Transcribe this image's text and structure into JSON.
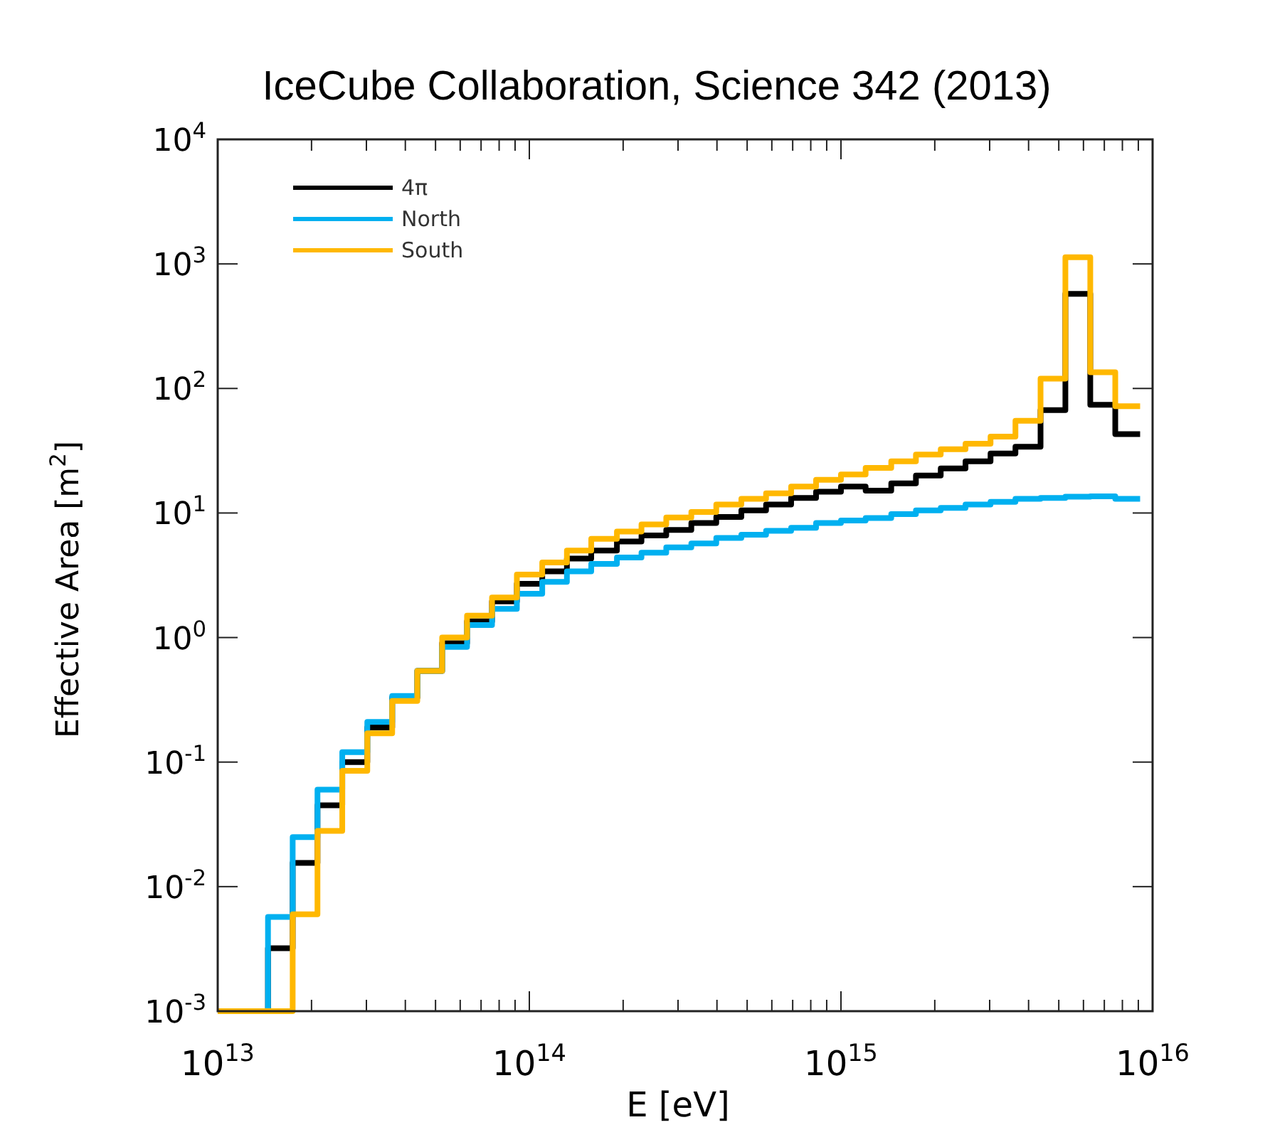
{
  "chart_data": {
    "type": "histogram",
    "title": "IceCube Collaboration, Science 342 (2013)",
    "xlabel": "E [eV]",
    "ylabel": "Effective Area [m$^{2}$]",
    "log": "xy",
    "legend": "top left",
    "grid": false,
    "xlim": [
      10000000000000.0,
      1e+16
    ],
    "ylim": [
      0.001,
      10000
    ],
    "xticks": [
      {
        "value": 10000000000000.0,
        "label": "10$^{13}$"
      },
      {
        "value": 20000000000000.0,
        "label": null
      },
      {
        "value": 30000000000000.0,
        "label": null
      },
      {
        "value": 40000000000000.0,
        "label": null
      },
      {
        "value": 50000000000000.0,
        "label": null
      },
      {
        "value": 60000000000000.0,
        "label": null
      },
      {
        "value": 70000000000000.0,
        "label": null
      },
      {
        "value": 80000000000000.0,
        "label": null
      },
      {
        "value": 90000000000000.0,
        "label": null
      },
      {
        "value": 100000000000000.0,
        "label": "10$^{14}$"
      },
      {
        "value": 200000000000000.0,
        "label": null
      },
      {
        "value": 300000000000000.0,
        "label": null
      },
      {
        "value": 400000000000000.0,
        "label": null
      },
      {
        "value": 500000000000000.0,
        "label": null
      },
      {
        "value": 600000000000000.0,
        "label": null
      },
      {
        "value": 700000000000000.0,
        "label": null
      },
      {
        "value": 800000000000000.0,
        "label": null
      },
      {
        "value": 900000000000000.0,
        "label": null
      },
      {
        "value": 1000000000000000.0,
        "label": "10$^{15}$"
      },
      {
        "value": 2000000000000000.0,
        "label": null
      },
      {
        "value": 3000000000000000.0,
        "label": null
      },
      {
        "value": 4000000000000000.0,
        "label": null
      },
      {
        "value": 5000000000000000.0,
        "label": null
      },
      {
        "value": 6000000000000000.0,
        "label": null
      },
      {
        "value": 7000000000000000.0,
        "label": null
      },
      {
        "value": 8000000000000000.0,
        "label": null
      },
      {
        "value": 9000000000000000.0,
        "label": null
      },
      {
        "value": 1e+16,
        "label": "10$^{16}$"
      }
    ],
    "yticks": [
      {
        "value": 0.001,
        "label": "10$^{-3}$"
      },
      {
        "value": 0.01,
        "label": "10$^{-2}$"
      },
      {
        "value": 0.1,
        "label": "10$^{-1}$"
      },
      {
        "value": 1,
        "label": "10$^{0}$"
      },
      {
        "value": 10,
        "label": "10$^{1}$"
      },
      {
        "value": 100,
        "label": "10$^{2}$"
      },
      {
        "value": 1000,
        "label": "10$^{3}$"
      },
      {
        "value": 10000,
        "label": "10$^{4}$"
      }
    ],
    "bins": [
      10000000000000.0,
      12000000000000.0,
      14500000000000.0,
      17400000000000.0,
      20900000000000.0,
      25100000000000.0,
      30200000000000.0,
      36300000000000.0,
      43700000000000.0,
      52500000000000.0,
      63100000000000.0,
      75900000000000.0,
      91200000000000.0,
      110000000000000.0,
      132000000000000.0,
      158000000000000.0,
      191000000000000.0,
      229000000000000.0,
      275000000000000.0,
      331000000000000.0,
      398000000000000.0,
      479000000000000.0,
      575000000000000.0,
      692000000000000.0,
      832000000000000.0,
      1000000000000000.0,
      1200000000000000.0,
      1450000000000000.0,
      1740000000000000.0,
      2090000000000000.0,
      2510000000000000.0,
      3020000000000000.0,
      3630000000000000.0,
      4370000000000000.0,
      5250000000000000.0,
      6310000000000000.0,
      7590000000000000.0,
      9120000000000000.0
    ],
    "series": [
      {
        "name": "4π",
        "color": "#000000",
        "values": [
          0.001,
          0.001,
          0.0032,
          0.0155,
          0.045,
          0.1,
          0.19,
          0.33,
          0.54,
          0.9,
          1.35,
          1.95,
          2.7,
          3.4,
          4.3,
          5.0,
          5.9,
          6.6,
          7.3,
          8.3,
          9.3,
          10.5,
          11.7,
          13.2,
          14.8,
          16.3,
          15.1,
          17.3,
          20,
          22.8,
          26,
          30,
          34,
          67,
          575,
          74,
          43
        ]
      },
      {
        "name": "North",
        "color": "#00b0f0",
        "values": [
          0.001,
          0.001,
          0.0057,
          0.025,
          0.06,
          0.12,
          0.21,
          0.34,
          0.54,
          0.84,
          1.26,
          1.7,
          2.25,
          2.8,
          3.4,
          3.9,
          4.4,
          4.8,
          5.3,
          5.7,
          6.3,
          6.7,
          7.2,
          7.6,
          8.3,
          8.7,
          9.1,
          9.8,
          10.5,
          11,
          11.7,
          12.3,
          13,
          13.2,
          13.5,
          13.6,
          13
        ]
      },
      {
        "name": "South",
        "color": "#ffb800",
        "values": [
          0.001,
          0.001,
          0.001,
          0.006,
          0.028,
          0.085,
          0.17,
          0.31,
          0.54,
          1.0,
          1.5,
          2.1,
          3.2,
          4.0,
          5.0,
          6.2,
          7.1,
          8.1,
          9.2,
          10.2,
          11.7,
          13,
          14.4,
          16.3,
          18.5,
          20.4,
          23,
          26,
          29.5,
          32.5,
          36,
          41,
          55,
          120,
          1130,
          135,
          72
        ]
      }
    ]
  }
}
